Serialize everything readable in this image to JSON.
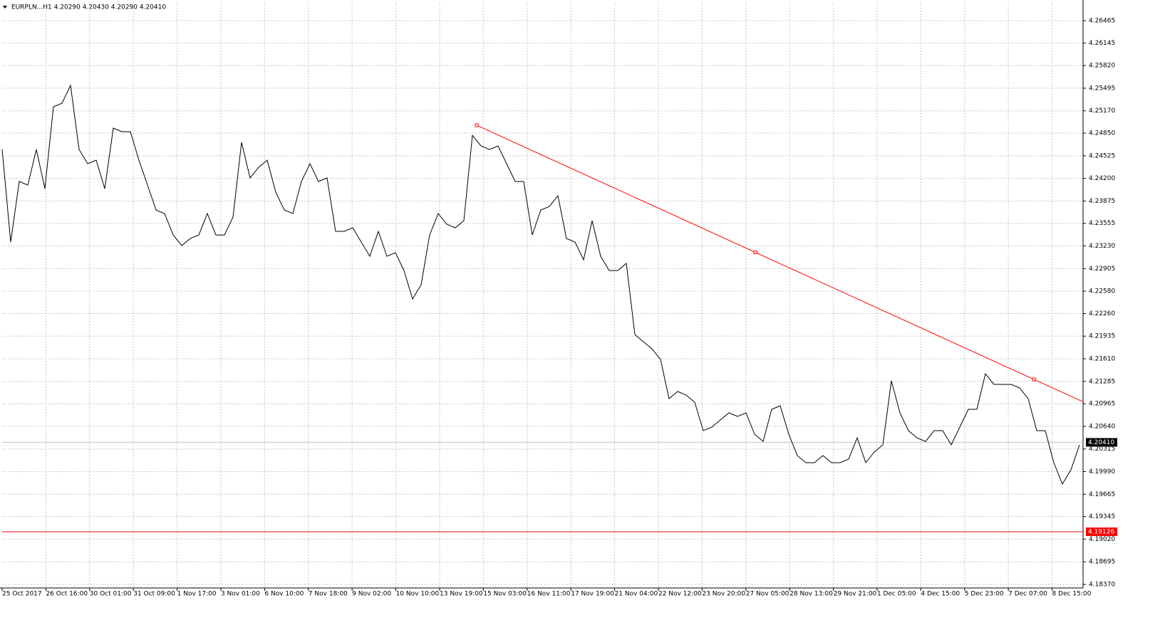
{
  "chart_data": {
    "type": "line",
    "title": "EURPLN...H1  4.20290 4.20430 4.20290 4.20410",
    "series": [
      {
        "name": "EURPLN,H1",
        "color": "#000000",
        "values": [
          4.24615,
          4.23286,
          4.24155,
          4.24104,
          4.24615,
          4.24053,
          4.25228,
          4.25279,
          4.25535,
          4.24615,
          4.24411,
          4.24462,
          4.24053,
          4.24922,
          4.24871,
          4.24871,
          4.24462,
          4.24104,
          4.23746,
          4.23695,
          4.23388,
          4.23235,
          4.23337,
          4.23388,
          4.23695,
          4.23388,
          4.23388,
          4.23644,
          4.24717,
          4.24206,
          4.24359,
          4.24462,
          4.24002,
          4.23746,
          4.23695,
          4.24155,
          4.24411,
          4.24155,
          4.24206,
          4.2344,
          4.2344,
          4.23491,
          4.23286,
          4.23082,
          4.2344,
          4.23082,
          4.23133,
          4.22877,
          4.22469,
          4.22673,
          4.23388,
          4.23695,
          4.23542,
          4.23491,
          4.23593,
          4.24819,
          4.24666,
          4.24615,
          4.24666,
          4.24411,
          4.24155,
          4.24155,
          4.23388,
          4.23746,
          4.23797,
          4.23951,
          4.23337,
          4.23286,
          4.23031,
          4.23593,
          4.23082,
          4.22877,
          4.22877,
          4.2298,
          4.21958,
          4.21855,
          4.21753,
          4.216,
          4.21038,
          4.2114,
          4.21089,
          4.20987,
          4.20578,
          4.20629,
          4.20731,
          4.20833,
          4.20782,
          4.20833,
          4.20527,
          4.20424,
          4.20884,
          4.20935,
          4.20527,
          4.2022,
          4.20118,
          4.20118,
          4.2022,
          4.20118,
          4.20118,
          4.20169,
          4.20475,
          4.20118,
          4.20271,
          4.20373,
          4.21293,
          4.20833,
          4.20578,
          4.20475,
          4.20424,
          4.20578,
          4.20578,
          4.20373,
          4.20629,
          4.20884,
          4.20884,
          4.21395,
          4.21242,
          4.21242,
          4.21242,
          4.21191,
          4.21038,
          4.20578,
          4.20578,
          4.20118,
          4.19811,
          4.20016,
          4.20373
        ]
      }
    ],
    "trendline": {
      "color": "#ff0000",
      "x": [
        55.5,
        120.67
      ],
      "values": [
        4.24963,
        4.21314
      ]
    },
    "hlines": [
      {
        "value": 4.19126,
        "label": "4.19126",
        "color": "#ff0000"
      }
    ],
    "current_price": {
      "value": 4.2041,
      "label": "4.20410",
      "color": "#c0c0c0"
    },
    "xlim": [
      0,
      126.42
    ],
    "xticks": [
      {
        "value": 0,
        "label": "25 Oct 2017"
      },
      {
        "value": 5.12,
        "label": "26 Oct 16:00"
      },
      {
        "value": 10.23,
        "label": "30 Oct 01:00"
      },
      {
        "value": 15.35,
        "label": "31 Oct 09:00"
      },
      {
        "value": 20.47,
        "label": "1 Nov 17:00"
      },
      {
        "value": 25.58,
        "label": "3 Nov 01:00"
      },
      {
        "value": 30.7,
        "label": "6 Nov 10:00"
      },
      {
        "value": 35.82,
        "label": "7 Nov 18:00"
      },
      {
        "value": 40.93,
        "label": "9 Nov 02:00"
      },
      {
        "value": 46.05,
        "label": "10 Nov 10:00"
      },
      {
        "value": 51.17,
        "label": "13 Nov 19:00"
      },
      {
        "value": 56.28,
        "label": "15 Nov 03:00"
      },
      {
        "value": 61.4,
        "label": "16 Nov 11:00"
      },
      {
        "value": 66.52,
        "label": "17 Nov 19:00"
      },
      {
        "value": 71.63,
        "label": "21 Nov 04:00"
      },
      {
        "value": 76.75,
        "label": "22 Nov 12:00"
      },
      {
        "value": 81.87,
        "label": "23 Nov 20:00"
      },
      {
        "value": 86.98,
        "label": "27 Nov 05:00"
      },
      {
        "value": 92.1,
        "label": "28 Nov 13:00"
      },
      {
        "value": 97.22,
        "label": "29 Nov 21:00"
      },
      {
        "value": 102.33,
        "label": "1 Dec 05:00"
      },
      {
        "value": 107.45,
        "label": "4 Dec 15:00"
      },
      {
        "value": 112.57,
        "label": "5 Dec 23:00"
      },
      {
        "value": 117.68,
        "label": "7 Dec 07:00"
      },
      {
        "value": 122.8,
        "label": "8 Dec 15:00"
      }
    ],
    "ylim": [
      4.18319,
      4.26731
    ],
    "yticks": [
      {
        "value": 4.26465,
        "label": "4.26465"
      },
      {
        "value": 4.26145,
        "label": "4.26145"
      },
      {
        "value": 4.2582,
        "label": "4.25820"
      },
      {
        "value": 4.25495,
        "label": "4.25495"
      },
      {
        "value": 4.2517,
        "label": "4.25170"
      },
      {
        "value": 4.2485,
        "label": "4.24850"
      },
      {
        "value": 4.24525,
        "label": "4.24525"
      },
      {
        "value": 4.242,
        "label": "4.24200"
      },
      {
        "value": 4.23875,
        "label": "4.23875"
      },
      {
        "value": 4.23555,
        "label": "4.23555"
      },
      {
        "value": 4.2323,
        "label": "4.23230"
      },
      {
        "value": 4.22905,
        "label": "4.22905"
      },
      {
        "value": 4.2258,
        "label": "4.22580"
      },
      {
        "value": 4.2226,
        "label": "4.22260"
      },
      {
        "value": 4.21935,
        "label": "4.21935"
      },
      {
        "value": 4.2161,
        "label": "4.21610"
      },
      {
        "value": 4.21285,
        "label": "4.21285"
      },
      {
        "value": 4.20965,
        "label": "4.20965"
      },
      {
        "value": 4.2064,
        "label": "4.20640"
      },
      {
        "value": 4.20315,
        "label": "4.20315"
      },
      {
        "value": 4.1999,
        "label": "4.19990"
      },
      {
        "value": 4.19665,
        "label": "4.19665"
      },
      {
        "value": 4.19345,
        "label": "4.19345"
      },
      {
        "value": 4.1902,
        "label": "4.19020"
      },
      {
        "value": 4.18695,
        "label": "4.18695"
      },
      {
        "value": 4.1837,
        "label": "4.18370"
      }
    ],
    "grid": true
  }
}
